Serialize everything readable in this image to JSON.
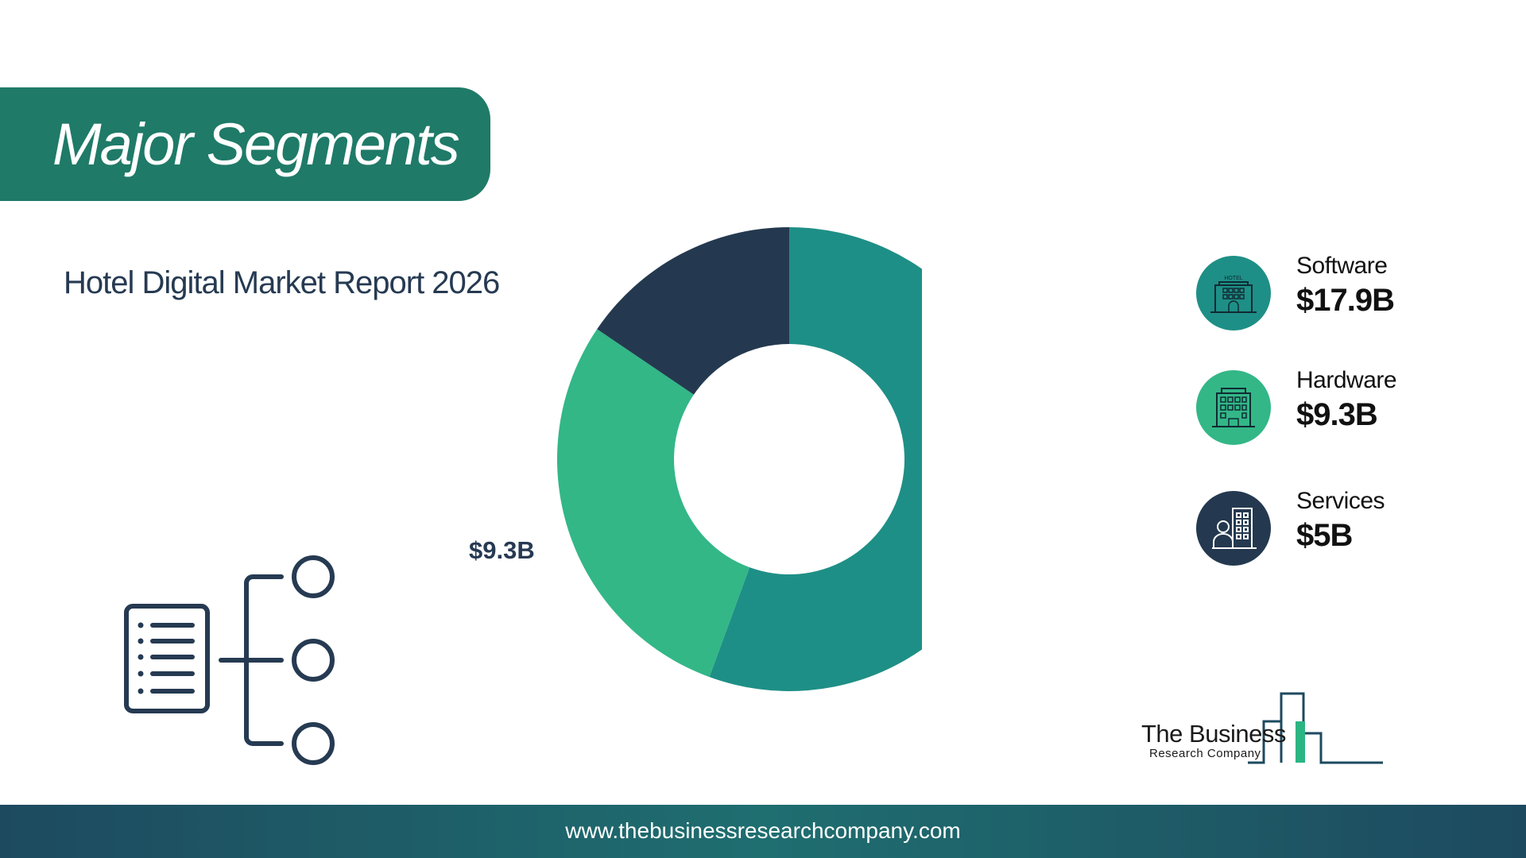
{
  "header": {
    "title": "Major Segments"
  },
  "report_title": "Hotel Digital Market Report 2026",
  "chart_data": {
    "type": "pie",
    "donut": true,
    "title": "",
    "categories": [
      "Software",
      "Hardware",
      "Services"
    ],
    "values": [
      17.9,
      9.3,
      5
    ],
    "unit": "$B",
    "data_labels": [
      "$17.9B",
      "$9.3B",
      "$5B"
    ],
    "colors": [
      "#1e8f86",
      "#33b787",
      "#24394f"
    ],
    "legend_placement": "right"
  },
  "legend": {
    "items": [
      {
        "label": "Software",
        "value": "$17.9B",
        "color": "#1e8f86",
        "icon": "hotel-icon",
        "icon_text": "HOTEL"
      },
      {
        "label": "Hardware",
        "value": "$9.3B",
        "color": "#33b787",
        "icon": "building-icon"
      },
      {
        "label": "Services",
        "value": "$5B",
        "color": "#24394f",
        "icon": "concierge-icon"
      }
    ]
  },
  "logo": {
    "line1": "The Business",
    "line2": "Research Company"
  },
  "footer": {
    "url": "www.thebusinessresearchcompany.com"
  }
}
